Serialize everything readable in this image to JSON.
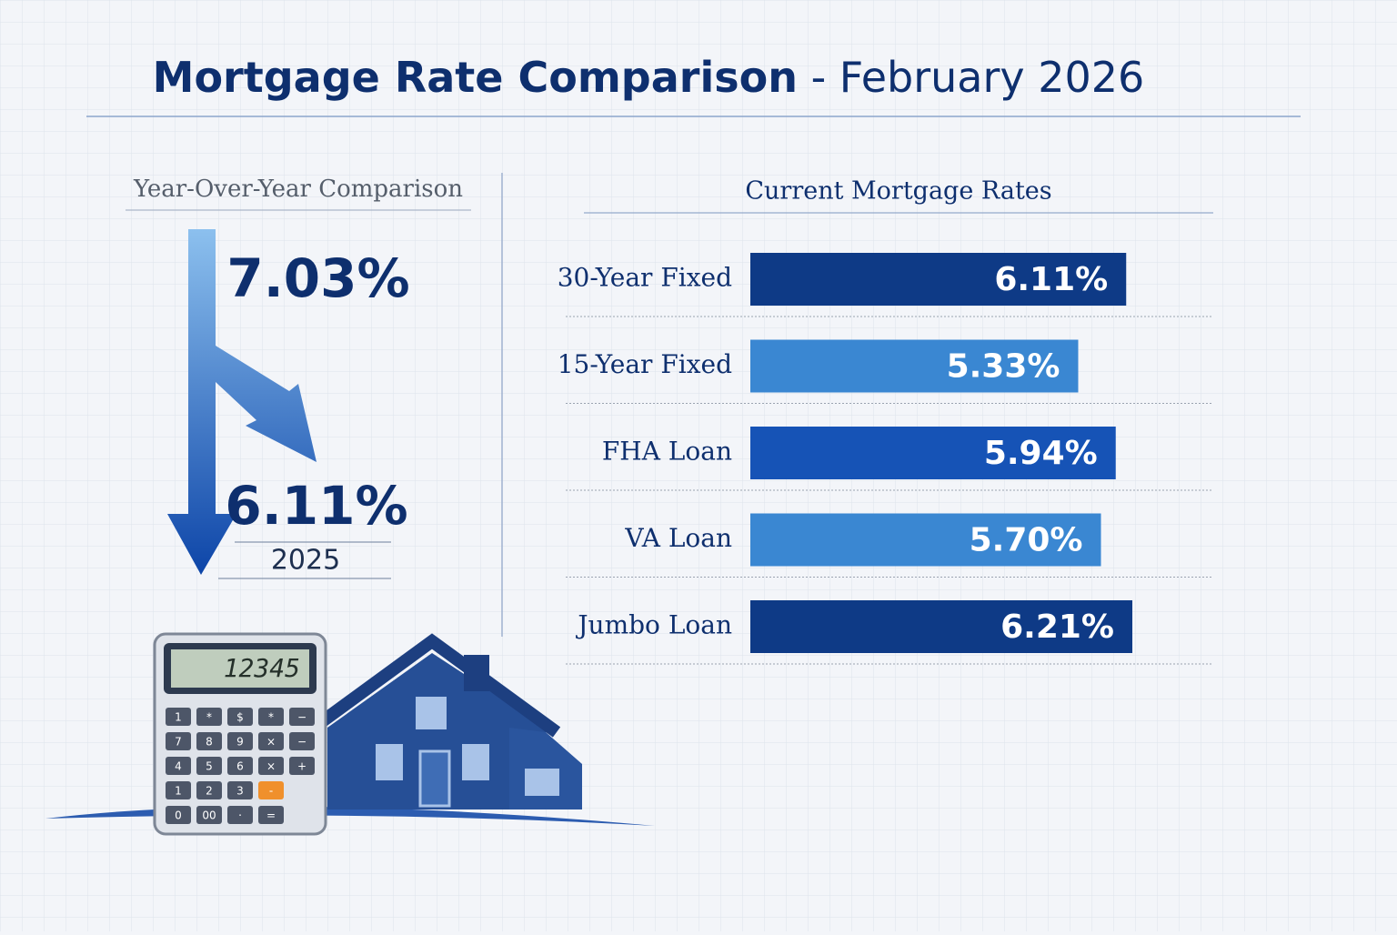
{
  "title": "Mortgage Rate Comparison",
  "title_suffix": "- February 2026",
  "comparison": {
    "heading": "Year-Over-Year Comparison",
    "previous": "7.03%",
    "current": "6.11%",
    "current_label": "2025"
  },
  "chart_data": {
    "type": "bar",
    "orientation": "horizontal",
    "title": "Current Mortgage Rates",
    "categories": [
      "30-Year Fixed",
      "15-Year Fixed",
      "FHA Loan",
      "VA Loan",
      "Jumbo Loan"
    ],
    "values": [
      6.11,
      5.33,
      5.94,
      5.7,
      6.21
    ],
    "value_labels": [
      "6.11%",
      "5.33%",
      "5.94%",
      "5.70%",
      "6.21%"
    ],
    "colors": [
      "#0e3a86",
      "#3a87d2",
      "#1653b6",
      "#3a87d2",
      "#0e3a86"
    ]
  },
  "calculator": {
    "display": "12345",
    "keys": [
      [
        "1",
        "*",
        "$",
        "*",
        "−"
      ],
      [
        "7",
        "8",
        "9",
        "×",
        "−"
      ],
      [
        "4",
        "5",
        "6",
        "×",
        "+"
      ],
      [
        "1",
        "2",
        "3",
        "-"
      ],
      [
        "0",
        "00",
        "·",
        "="
      ]
    ]
  }
}
